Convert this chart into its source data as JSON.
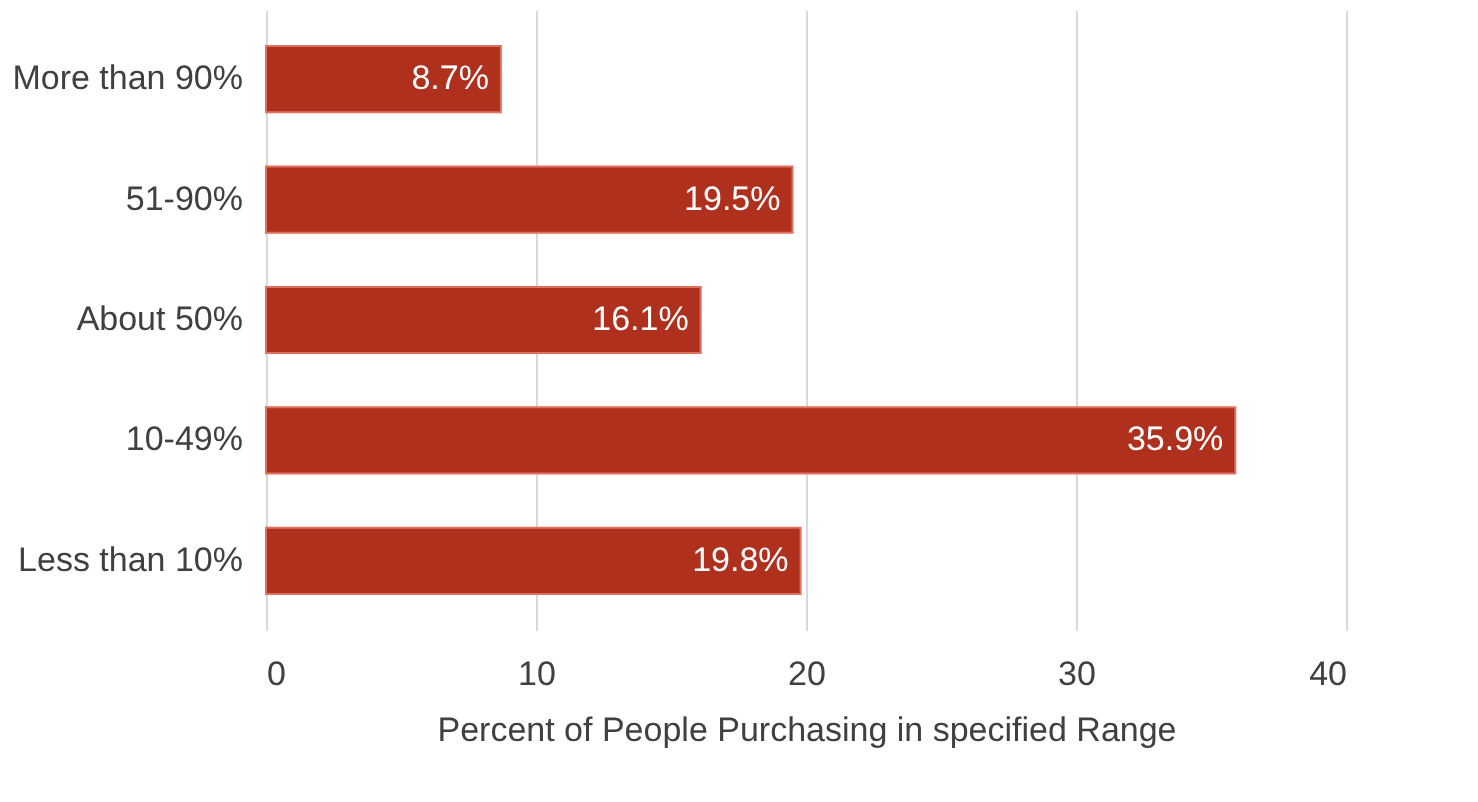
{
  "chart_data": {
    "type": "bar",
    "orientation": "horizontal",
    "xlabel": "Percent of People Purchasing in specified Range",
    "categories": [
      "More than 90%",
      "51-90%",
      "About 50%",
      "10-49%",
      "Less than 10%"
    ],
    "values": [
      8.7,
      19.5,
      16.1,
      35.9,
      19.8
    ],
    "value_labels": [
      "8.7%",
      "19.5%",
      "16.1%",
      "35.9%",
      "19.8%"
    ],
    "color": "#b0301e",
    "xlim": [
      0,
      40
    ],
    "xticks": [
      0,
      10,
      20,
      30,
      40
    ],
    "grid": "x"
  }
}
